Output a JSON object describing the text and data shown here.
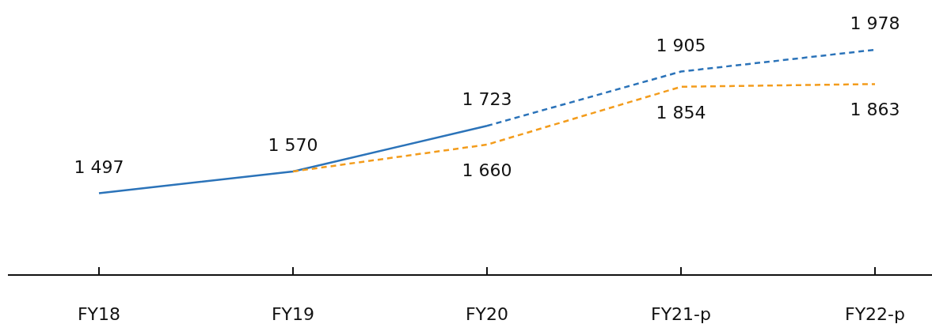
{
  "chart_data": {
    "type": "line",
    "categories": [
      "FY18",
      "FY19",
      "FY20",
      "FY21-p",
      "FY22-p"
    ],
    "series": [
      {
        "color": "#2b73b9",
        "line_style": "solid",
        "values": [
          1497,
          1570,
          1723,
          null,
          null
        ],
        "value_labels": [
          "1 497",
          "1 570",
          "1 723",
          null,
          null
        ]
      },
      {
        "color": "#2b73b9",
        "line_style": "dashed",
        "values": [
          null,
          null,
          1723,
          1905,
          1978
        ],
        "value_labels": [
          null,
          null,
          null,
          "1 905",
          "1 978"
        ]
      },
      {
        "color": "#f39c1c",
        "line_style": "dashed",
        "values": [
          null,
          1570,
          1660,
          1854,
          1863
        ],
        "value_labels": [
          null,
          null,
          "1 660",
          "1 854",
          "1 863"
        ]
      }
    ],
    "marker": "none"
  }
}
